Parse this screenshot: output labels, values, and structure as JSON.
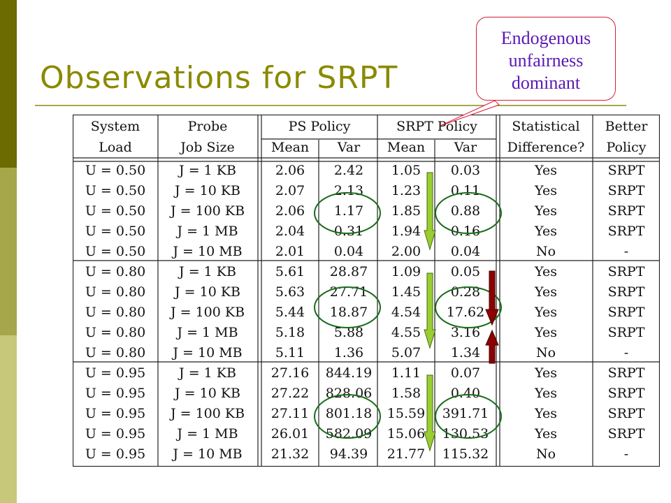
{
  "slide": {
    "title": "Observations for SRPT",
    "callout": [
      "Endogenous",
      "unfairness",
      "dominant"
    ]
  },
  "table": {
    "header_top": [
      "System",
      "Probe",
      "PS Policy",
      "SRPT Policy",
      "Statistical",
      "Better"
    ],
    "header_bottom": [
      "Load",
      "Job Size",
      "Mean",
      "Var",
      "Mean",
      "Var",
      "Difference?",
      "Policy"
    ],
    "rows": [
      [
        "U = 0.50",
        "J = 1 KB",
        "2.06",
        "2.42",
        "1.05",
        "0.03",
        "Yes",
        "SRPT"
      ],
      [
        "U = 0.50",
        "J = 10 KB",
        "2.07",
        "2.13",
        "1.23",
        "0.11",
        "Yes",
        "SRPT"
      ],
      [
        "U = 0.50",
        "J = 100 KB",
        "2.06",
        "1.17",
        "1.85",
        "0.88",
        "Yes",
        "SRPT"
      ],
      [
        "U = 0.50",
        "J = 1 MB",
        "2.04",
        "0.31",
        "1.94",
        "0.16",
        "Yes",
        "SRPT"
      ],
      [
        "U = 0.50",
        "J = 10 MB",
        "2.01",
        "0.04",
        "2.00",
        "0.04",
        "No",
        "-"
      ],
      [
        "U = 0.80",
        "J = 1 KB",
        "5.61",
        "28.87",
        "1.09",
        "0.05",
        "Yes",
        "SRPT"
      ],
      [
        "U = 0.80",
        "J = 10 KB",
        "5.63",
        "27.71",
        "1.45",
        "0.28",
        "Yes",
        "SRPT"
      ],
      [
        "U = 0.80",
        "J = 100 KB",
        "5.44",
        "18.87",
        "4.54",
        "17.62",
        "Yes",
        "SRPT"
      ],
      [
        "U = 0.80",
        "J = 1 MB",
        "5.18",
        "5.88",
        "4.55",
        "3.16",
        "Yes",
        "SRPT"
      ],
      [
        "U = 0.80",
        "J = 10 MB",
        "5.11",
        "1.36",
        "5.07",
        "1.34",
        "No",
        "-"
      ],
      [
        "U = 0.95",
        "J = 1 KB",
        "27.16",
        "844.19",
        "1.11",
        "0.07",
        "Yes",
        "SRPT"
      ],
      [
        "U = 0.95",
        "J = 10 KB",
        "27.22",
        "828.06",
        "1.58",
        "0.40",
        "Yes",
        "SRPT"
      ],
      [
        "U = 0.95",
        "J = 100 KB",
        "27.11",
        "801.18",
        "15.59",
        "391.71",
        "Yes",
        "SRPT"
      ],
      [
        "U = 0.95",
        "J = 1 MB",
        "26.01",
        "582.09",
        "15.06",
        "130.53",
        "Yes",
        "SRPT"
      ],
      [
        "U = 0.95",
        "J = 10 MB",
        "21.32",
        "94.39",
        "21.77",
        "115.32",
        "No",
        "-"
      ]
    ]
  },
  "colors": {
    "title": "#8a8a00",
    "callout_text": "#5b18b4",
    "callout_border": "#d61e3c",
    "circle": "#1a6b1a",
    "green_arrow": "#9acd32",
    "red_arrow": "#8b0000"
  }
}
